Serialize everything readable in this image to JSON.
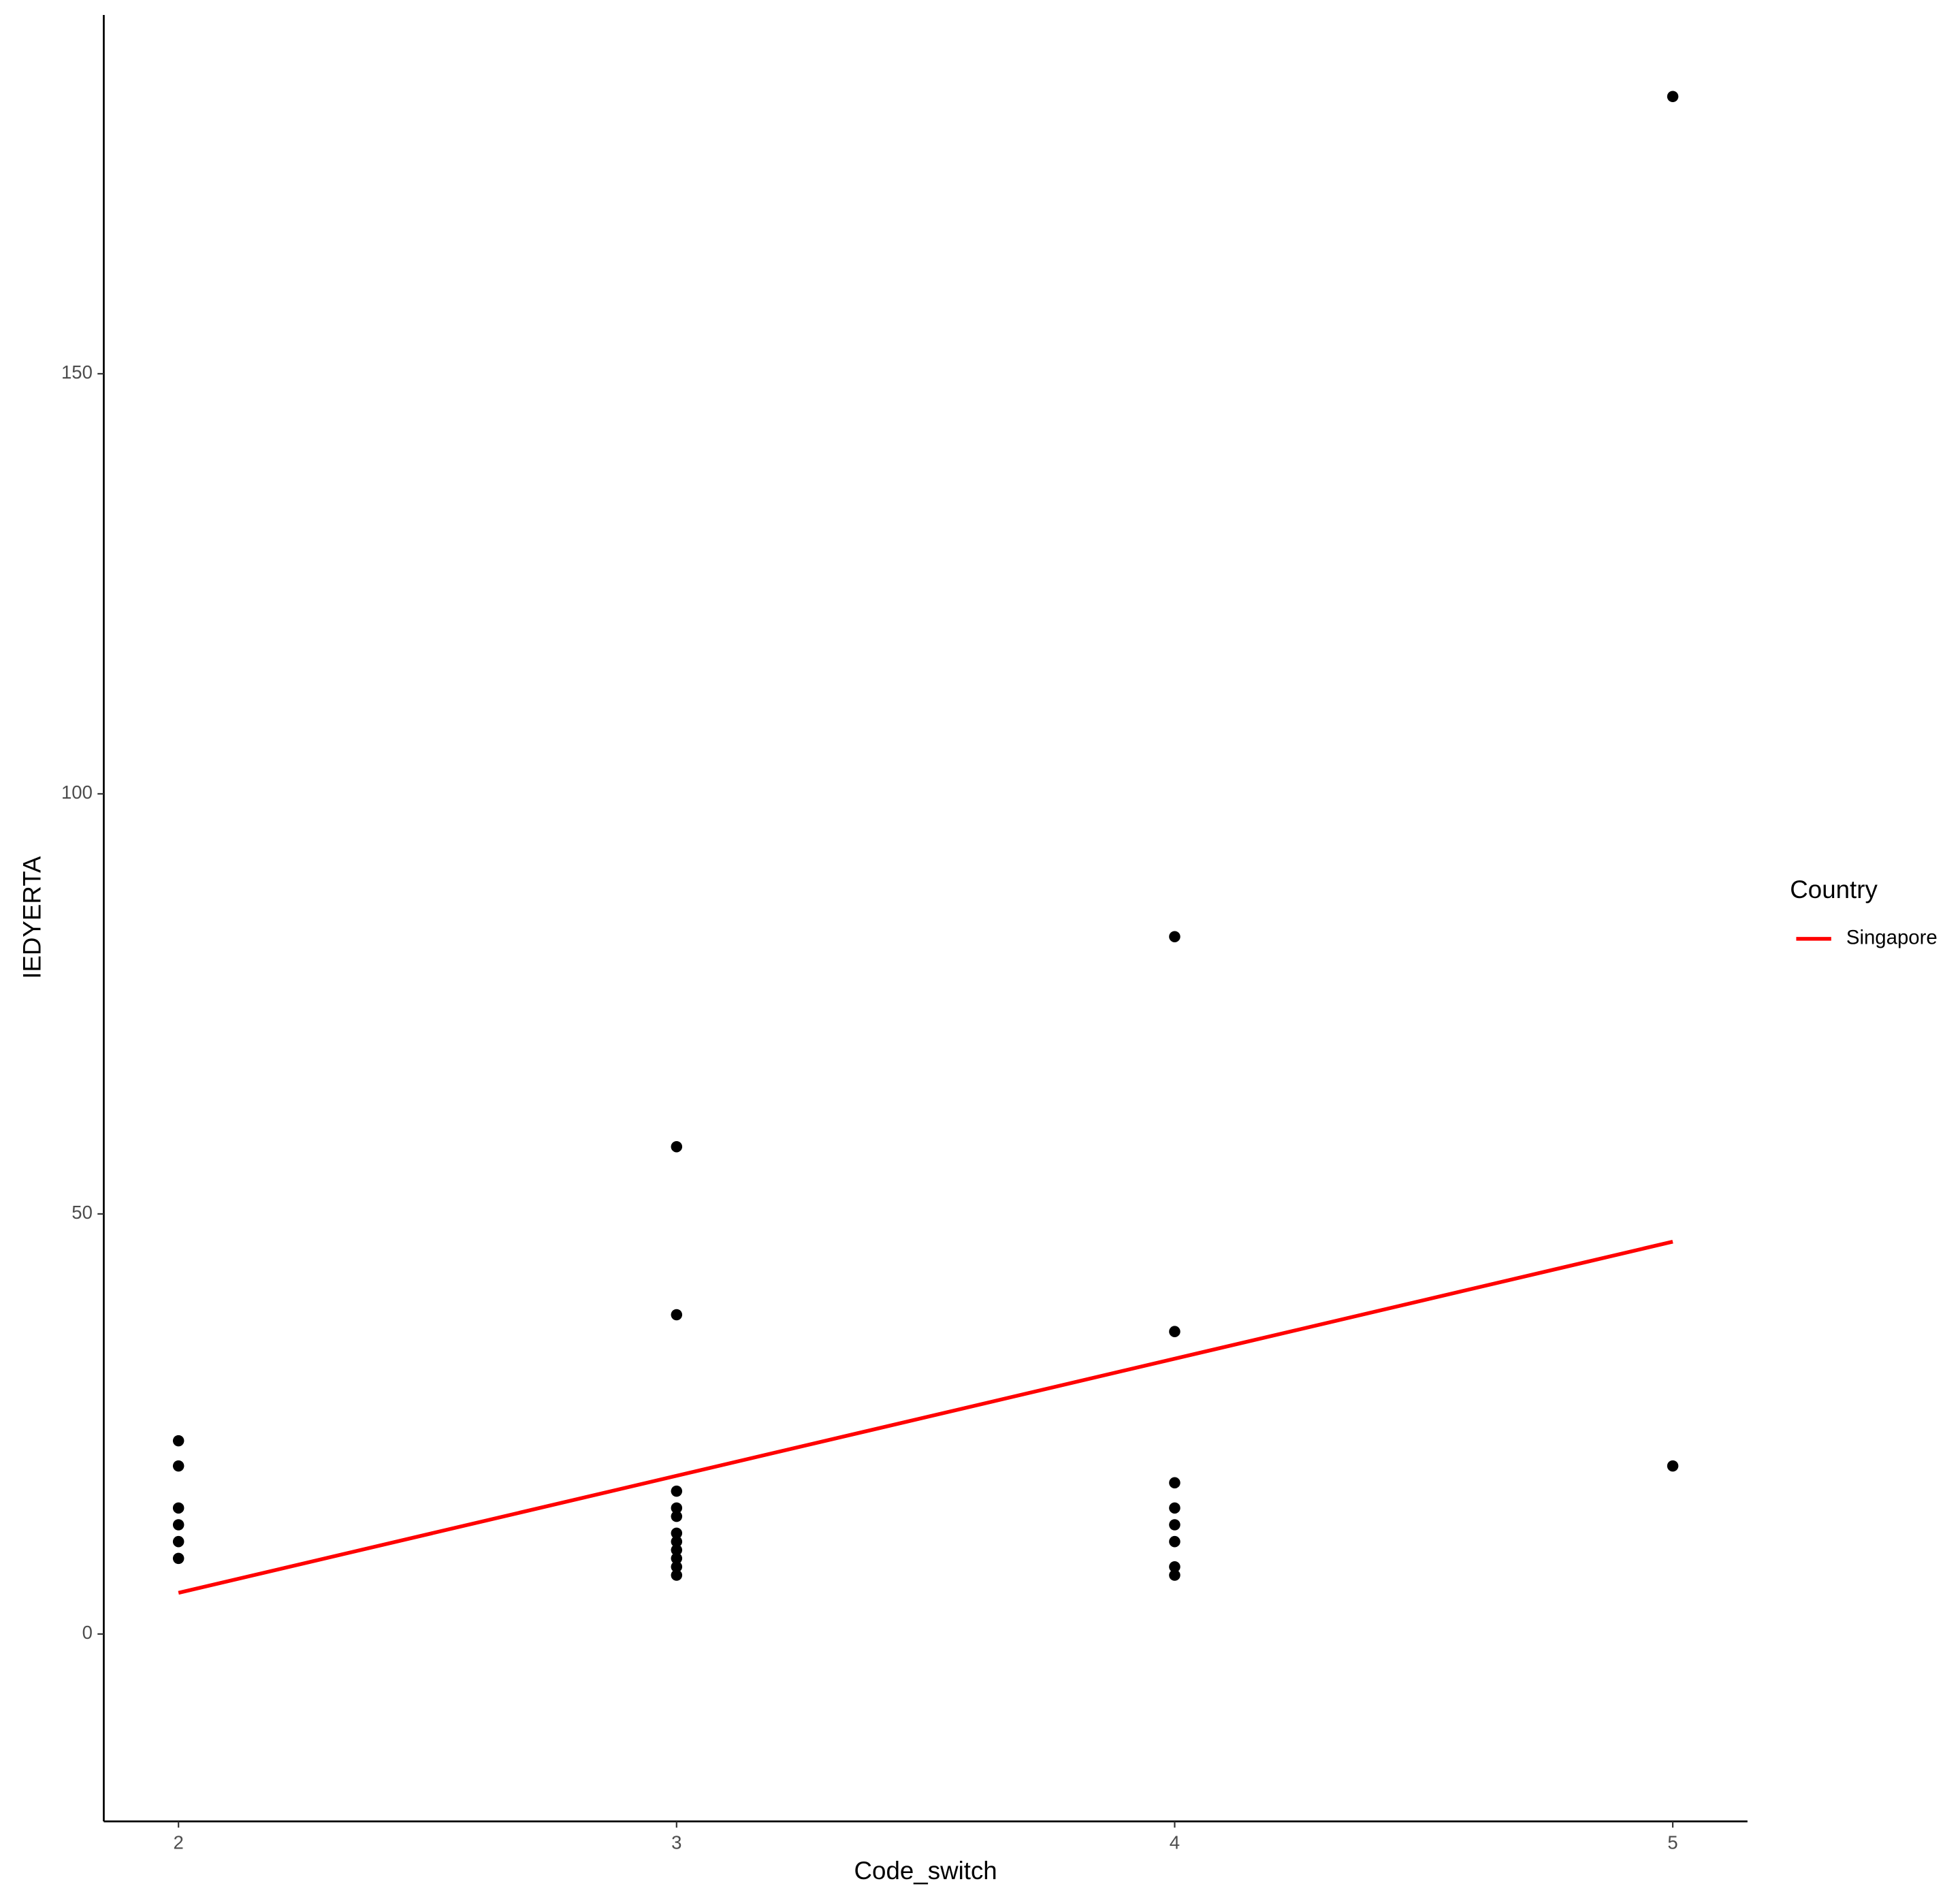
{
  "chart_data": {
    "type": "scatter",
    "x_label": "Code_switch",
    "y_label": "IEDYERTA",
    "xlim": [
      1.85,
      5.15
    ],
    "ylim": [
      -22.3,
      192.7
    ],
    "xticks": [
      2,
      3,
      4,
      5
    ],
    "yticks": [
      0,
      50,
      100,
      150
    ],
    "points": {
      "color": "#000000",
      "x": [
        2,
        2,
        2,
        2,
        2,
        2,
        3,
        3,
        3,
        3,
        3,
        3,
        3,
        3,
        3,
        3,
        3,
        4,
        4,
        4,
        4,
        4,
        4,
        4,
        4,
        5,
        5
      ],
      "y": [
        23,
        20,
        15,
        13,
        11,
        9,
        58,
        38,
        17,
        15,
        14,
        12,
        11,
        10,
        9,
        8,
        7,
        83,
        36,
        18,
        15,
        13,
        11,
        8,
        7,
        183,
        20
      ]
    },
    "legend_title": "Country",
    "series": [
      {
        "name": "Singapore",
        "color": "#ff0000",
        "x": [
          2,
          5
        ],
        "values": [
          4.9,
          46.7
        ]
      }
    ]
  }
}
